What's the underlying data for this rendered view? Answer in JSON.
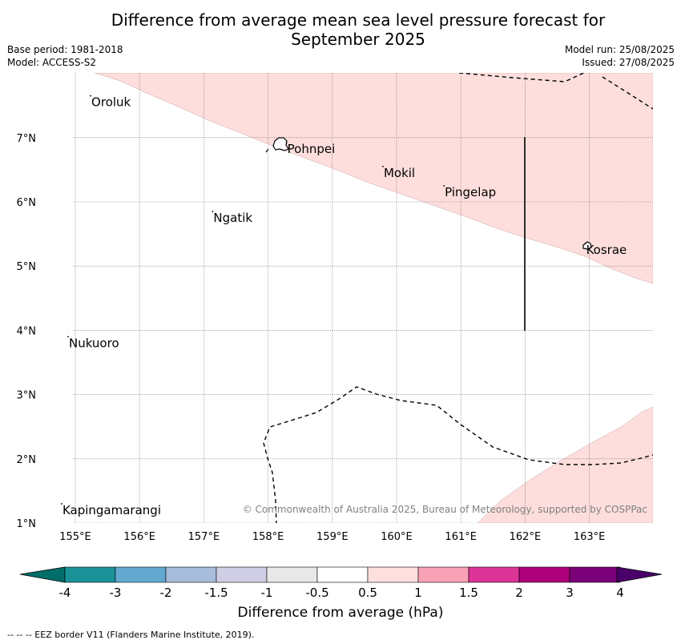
{
  "header": {
    "title_line1": "Difference from average mean sea level pressure forecast for",
    "title_line2": "September 2025",
    "base_period": "Base period: 1981-2018",
    "model": "Model: ACCESS-S2",
    "model_run": "Model run: 25/08/2025",
    "issued": "Issued: 27/08/2025"
  },
  "map": {
    "lon_range": [
      154.5,
      164.0
    ],
    "lat_range": [
      1.0,
      8.0
    ],
    "lon_ticks": [
      155,
      156,
      157,
      158,
      159,
      160,
      161,
      162,
      163
    ],
    "lon_tick_labels": [
      "155°E",
      "156°E",
      "157°E",
      "158°E",
      "159°E",
      "160°E",
      "161°E",
      "162°E",
      "163°E"
    ],
    "lat_ticks": [
      1,
      2,
      3,
      4,
      5,
      6,
      7
    ],
    "lat_tick_labels": [
      "1°N",
      "2°N",
      "3°N",
      "4°N",
      "5°N",
      "6°N",
      "7°N"
    ],
    "places": [
      {
        "name": "Oroluk",
        "lon": 155.25,
        "lat": 7.6
      },
      {
        "name": "Pohnpei",
        "lon": 158.3,
        "lat": 6.87
      },
      {
        "name": "Mokil",
        "lon": 159.8,
        "lat": 6.5
      },
      {
        "name": "Pingelap",
        "lon": 160.75,
        "lat": 6.2
      },
      {
        "name": "Ngatik",
        "lon": 157.15,
        "lat": 5.8
      },
      {
        "name": "Kosrae",
        "lon": 162.95,
        "lat": 5.3
      },
      {
        "name": "Nukuoro",
        "lon": 154.9,
        "lat": 3.85
      },
      {
        "name": "Kapingamarangi",
        "lon": 154.8,
        "lat": 1.25
      }
    ],
    "copyright": "© Commonwealth of Australia 2025, Bureau of Meteorology, supported by COSPPac",
    "anomaly_fill_color": "#fddedc"
  },
  "colorbar": {
    "tick_labels": [
      "-4",
      "-3",
      "-2",
      "-1.5",
      "-1",
      "-0.5",
      "0.5",
      "1",
      "1.5",
      "2",
      "3",
      "4"
    ],
    "colors": [
      "#1b9297",
      "#63a9cf",
      "#a7bddb",
      "#cfcee4",
      "#e8e8e8",
      "#ffffff",
      "#fde0de",
      "#f9a2b7",
      "#dd3497",
      "#ae0179",
      "#7a0177"
    ],
    "under_color": "#006e6a",
    "over_color": "#4a006a",
    "label": "Difference from average (hPa)"
  },
  "footer": {
    "eez_note": "--  --  -- EEZ border V11 (Flanders Marine Institute, 2019)."
  }
}
